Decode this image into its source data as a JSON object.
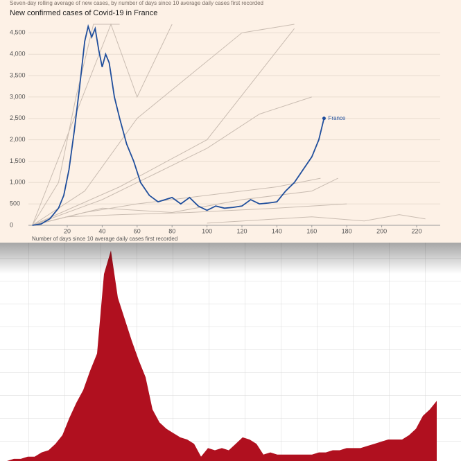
{
  "chart_data": [
    {
      "type": "line",
      "subtitle": "Seven-day rolling average of new cases, by number of days since 10 average daily cases first recorded",
      "title": "New confirmed cases of Covid-19 in France",
      "x_label": "Number of days since 10 average daily cases first recorded",
      "xlim": [
        -2,
        234
      ],
      "ylim": [
        0,
        4700
      ],
      "xticks": [
        20,
        40,
        60,
        80,
        100,
        120,
        140,
        160,
        180,
        200,
        220
      ],
      "yticks": [
        0,
        500,
        {
          "value": 1000,
          "label": "1,000"
        },
        {
          "value": 1500,
          "label": "1,500"
        },
        {
          "value": 2000,
          "label": "2,000"
        },
        {
          "value": 2500,
          "label": "2,500"
        },
        {
          "value": 3000,
          "label": "3,000"
        },
        {
          "value": 3500,
          "label": "3,500"
        },
        {
          "value": 4000,
          "label": "4,000"
        },
        {
          "value": 4500,
          "label": "4,500"
        }
      ],
      "grid": true,
      "other_color": "#c9bcb1",
      "other_series": [
        {
          "x": [
            0,
            15,
            25,
            35,
            50
          ],
          "values": [
            0,
            1000,
            3000,
            4700,
            4700
          ]
        },
        {
          "x": [
            0,
            30,
            60,
            90,
            120,
            150
          ],
          "values": [
            0,
            800,
            2500,
            3500,
            4500,
            4700
          ]
        },
        {
          "x": [
            0,
            40,
            70,
            100,
            130,
            160
          ],
          "values": [
            0,
            600,
            1200,
            1800,
            2600,
            3000
          ]
        },
        {
          "x": [
            0,
            30,
            60,
            100,
            140,
            165
          ],
          "values": [
            0,
            300,
            500,
            700,
            900,
            1100
          ]
        },
        {
          "x": [
            0,
            40,
            80,
            120,
            160,
            175
          ],
          "values": [
            0,
            400,
            300,
            600,
            800,
            1100
          ]
        },
        {
          "x": [
            0,
            20,
            50,
            90,
            140,
            180
          ],
          "values": [
            0,
            200,
            250,
            300,
            400,
            500
          ]
        },
        {
          "x": [
            100,
            160,
            190,
            210,
            225
          ],
          "values": [
            50,
            200,
            100,
            250,
            150
          ]
        },
        {
          "x": [
            0,
            50,
            100,
            150
          ],
          "values": [
            0,
            900,
            2000,
            4600
          ]
        },
        {
          "x": [
            0,
            45,
            60,
            80
          ],
          "values": [
            0,
            4700,
            3000,
            4700
          ]
        }
      ],
      "series": [
        {
          "name": "France",
          "color": "#1f4e9c",
          "x": [
            0,
            5,
            10,
            15,
            18,
            21,
            24,
            27,
            30,
            32,
            34,
            36,
            38,
            40,
            42,
            44,
            47,
            50,
            54,
            58,
            62,
            67,
            72,
            80,
            85,
            90,
            95,
            100,
            105,
            110,
            115,
            120,
            125,
            130,
            135,
            140,
            145,
            150,
            155,
            160,
            164,
            167
          ],
          "values": [
            0,
            30,
            150,
            400,
            700,
            1300,
            2200,
            3200,
            4300,
            4650,
            4400,
            4600,
            4100,
            3700,
            4000,
            3800,
            3000,
            2500,
            1900,
            1500,
            1000,
            700,
            550,
            650,
            500,
            650,
            450,
            350,
            450,
            400,
            420,
            450,
            600,
            500,
            520,
            550,
            800,
            1000,
            1300,
            1600,
            2000,
            2500
          ]
        }
      ]
    },
    {
      "type": "area",
      "color": "#b0101f",
      "ylim": [
        0,
        100
      ],
      "values": [
        0,
        0,
        1,
        1,
        2,
        2,
        4,
        5,
        8,
        12,
        20,
        27,
        33,
        42,
        50,
        87,
        98,
        76,
        66,
        56,
        47,
        39,
        24,
        18,
        15,
        13,
        11,
        10,
        8,
        2,
        6,
        5,
        6,
        5,
        8,
        11,
        10,
        8,
        3,
        4,
        3,
        3,
        3,
        3,
        3,
        3,
        4,
        4,
        5,
        5,
        6,
        6,
        6,
        7,
        8,
        9,
        10,
        10,
        10,
        12,
        15,
        21,
        24,
        28
      ]
    }
  ]
}
